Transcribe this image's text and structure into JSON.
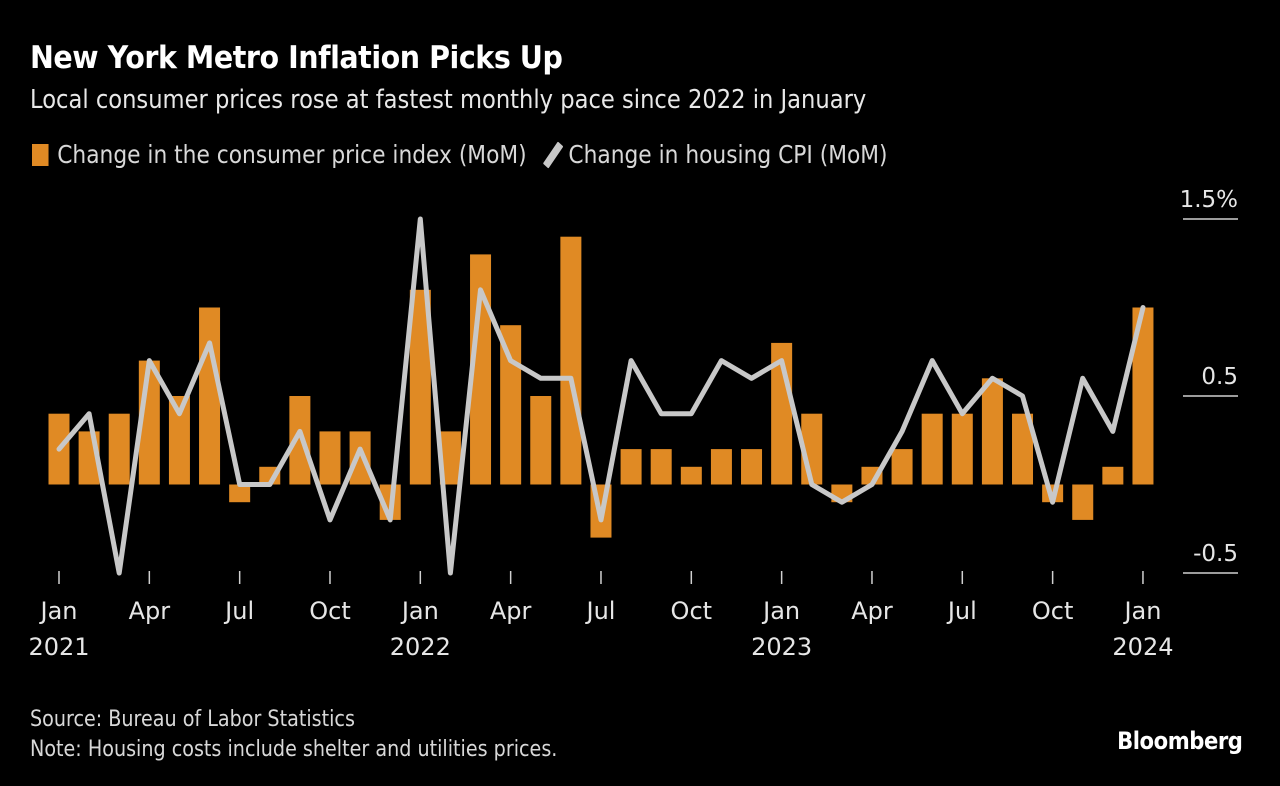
{
  "header": {
    "title": "New York Metro Inflation Picks Up",
    "subtitle": "Local consumer prices rose at fastest monthly pace since 2022 in January"
  },
  "legend": {
    "items": [
      {
        "label": "Change in the consumer price index (MoM)",
        "icon": "bar-swatch-icon",
        "color": "#E08A24"
      },
      {
        "label": "Change in housing CPI (MoM)",
        "icon": "line-swatch-icon",
        "color": "#C8C8C8"
      }
    ]
  },
  "footer": {
    "source": "Source: Bureau of Labor Statistics",
    "note": "Note: Housing costs include shelter and utilities prices.",
    "brand": "Bloomberg"
  },
  "chart_data": {
    "type": "bar+line",
    "title": "New York Metro Inflation Picks Up",
    "subtitle": "Local consumer prices rose at fastest monthly pace since 2022 in January",
    "xlabel": "",
    "ylabel": "",
    "ylim": [
      -0.5,
      1.5
    ],
    "y_ticks": [
      {
        "value": 1.5,
        "label": "1.5%"
      },
      {
        "value": 0.5,
        "label": "0.5"
      },
      {
        "value": -0.5,
        "label": "-0.5"
      }
    ],
    "y_axis_side": "right",
    "grid": false,
    "legend_position": "top-left",
    "x": [
      "2021-01",
      "2021-02",
      "2021-03",
      "2021-04",
      "2021-05",
      "2021-06",
      "2021-07",
      "2021-08",
      "2021-09",
      "2021-10",
      "2021-11",
      "2021-12",
      "2022-01",
      "2022-02",
      "2022-03",
      "2022-04",
      "2022-05",
      "2022-06",
      "2022-07",
      "2022-08",
      "2022-09",
      "2022-10",
      "2022-11",
      "2022-12",
      "2023-01",
      "2023-02",
      "2023-03",
      "2023-04",
      "2023-05",
      "2023-06",
      "2023-07",
      "2023-08",
      "2023-09",
      "2023-10",
      "2023-11",
      "2023-12",
      "2024-01"
    ],
    "x_ticks": [
      {
        "index": 0,
        "label": "Jan",
        "year": "2021"
      },
      {
        "index": 3,
        "label": "Apr",
        "year": ""
      },
      {
        "index": 6,
        "label": "Jul",
        "year": ""
      },
      {
        "index": 9,
        "label": "Oct",
        "year": ""
      },
      {
        "index": 12,
        "label": "Jan",
        "year": "2022"
      },
      {
        "index": 15,
        "label": "Apr",
        "year": ""
      },
      {
        "index": 18,
        "label": "Jul",
        "year": ""
      },
      {
        "index": 21,
        "label": "Oct",
        "year": ""
      },
      {
        "index": 24,
        "label": "Jan",
        "year": "2023"
      },
      {
        "index": 27,
        "label": "Apr",
        "year": ""
      },
      {
        "index": 30,
        "label": "Jul",
        "year": ""
      },
      {
        "index": 33,
        "label": "Oct",
        "year": ""
      },
      {
        "index": 36,
        "label": "Jan",
        "year": "2024"
      }
    ],
    "series": [
      {
        "name": "Change in the consumer price index (MoM)",
        "type": "bar",
        "color": "#E08A24",
        "values": [
          0.4,
          0.3,
          0.4,
          0.7,
          0.5,
          1.0,
          -0.1,
          0.1,
          0.5,
          0.3,
          0.3,
          -0.2,
          1.1,
          0.3,
          1.3,
          0.9,
          0.5,
          1.4,
          -0.3,
          0.2,
          0.2,
          0.1,
          0.2,
          0.2,
          0.8,
          0.4,
          -0.1,
          0.1,
          0.2,
          0.4,
          0.4,
          0.6,
          0.4,
          -0.1,
          -0.2,
          0.1,
          1.0
        ]
      },
      {
        "name": "Change in housing CPI (MoM)",
        "type": "line",
        "color": "#C8C8C8",
        "values": [
          0.2,
          0.4,
          -0.5,
          0.7,
          0.4,
          0.8,
          0.0,
          0.0,
          0.3,
          -0.2,
          0.2,
          -0.2,
          1.5,
          -0.5,
          1.1,
          0.7,
          0.6,
          0.6,
          -0.2,
          0.7,
          0.4,
          0.4,
          0.7,
          0.6,
          0.7,
          0.0,
          -0.1,
          0.0,
          0.3,
          0.7,
          0.4,
          0.6,
          0.5,
          -0.1,
          0.6,
          0.3,
          1.0
        ]
      }
    ]
  }
}
